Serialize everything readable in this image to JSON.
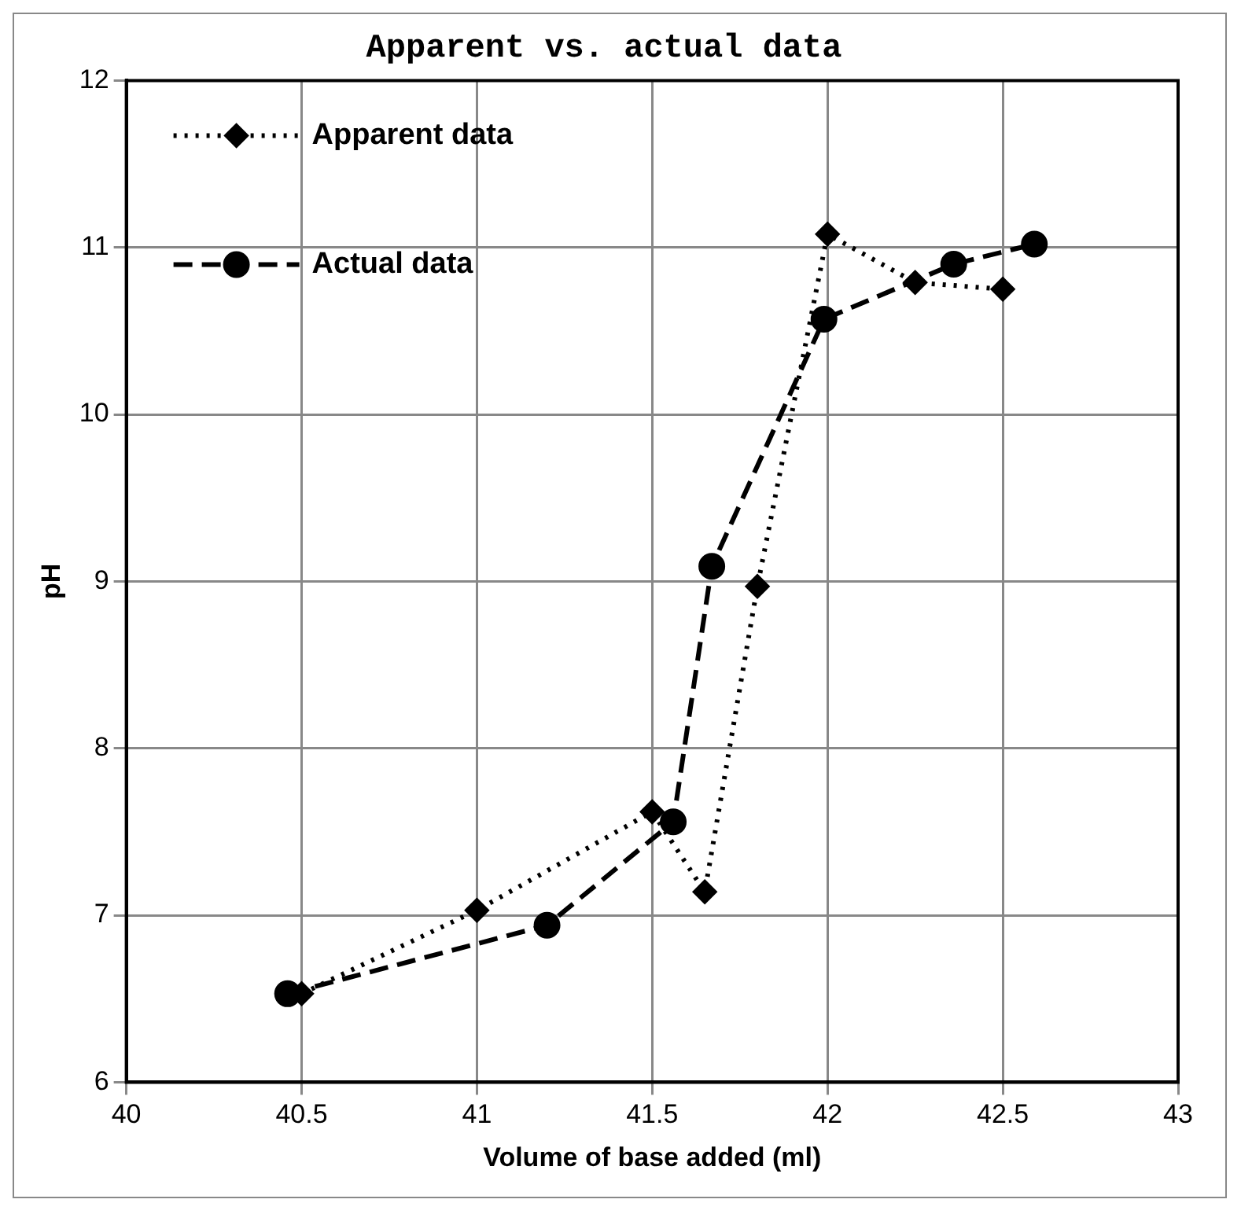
{
  "chart_data": {
    "type": "line",
    "title": "Apparent vs. actual data",
    "xlabel": "Volume of base added (ml)",
    "ylabel": "pH",
    "xlim": [
      40,
      43
    ],
    "xticks": [
      40,
      40.5,
      41,
      41.5,
      42,
      42.5,
      43
    ],
    "ylim": [
      6,
      12
    ],
    "yticks": [
      6,
      7,
      8,
      9,
      10,
      11,
      12
    ],
    "grid": true,
    "legend": "top left",
    "series": [
      {
        "name": "Apparent data",
        "color": "#000000",
        "marker": "diamond",
        "line_style": "dotted",
        "x": [
          40.5,
          41,
          41.5,
          41.65,
          41.8,
          42,
          42.25,
          42.5
        ],
        "values": [
          6.53,
          7.03,
          7.62,
          7.14,
          8.97,
          11.08,
          10.79,
          10.75
        ]
      },
      {
        "name": "Actual data",
        "color": "#000000",
        "marker": "circle",
        "line_style": "dashed",
        "x": [
          40.46,
          41.2,
          41.56,
          41.67,
          41.99,
          42.36,
          42.59
        ],
        "values": [
          6.53,
          6.94,
          7.56,
          9.09,
          10.57,
          10.9,
          11.02
        ]
      }
    ]
  }
}
